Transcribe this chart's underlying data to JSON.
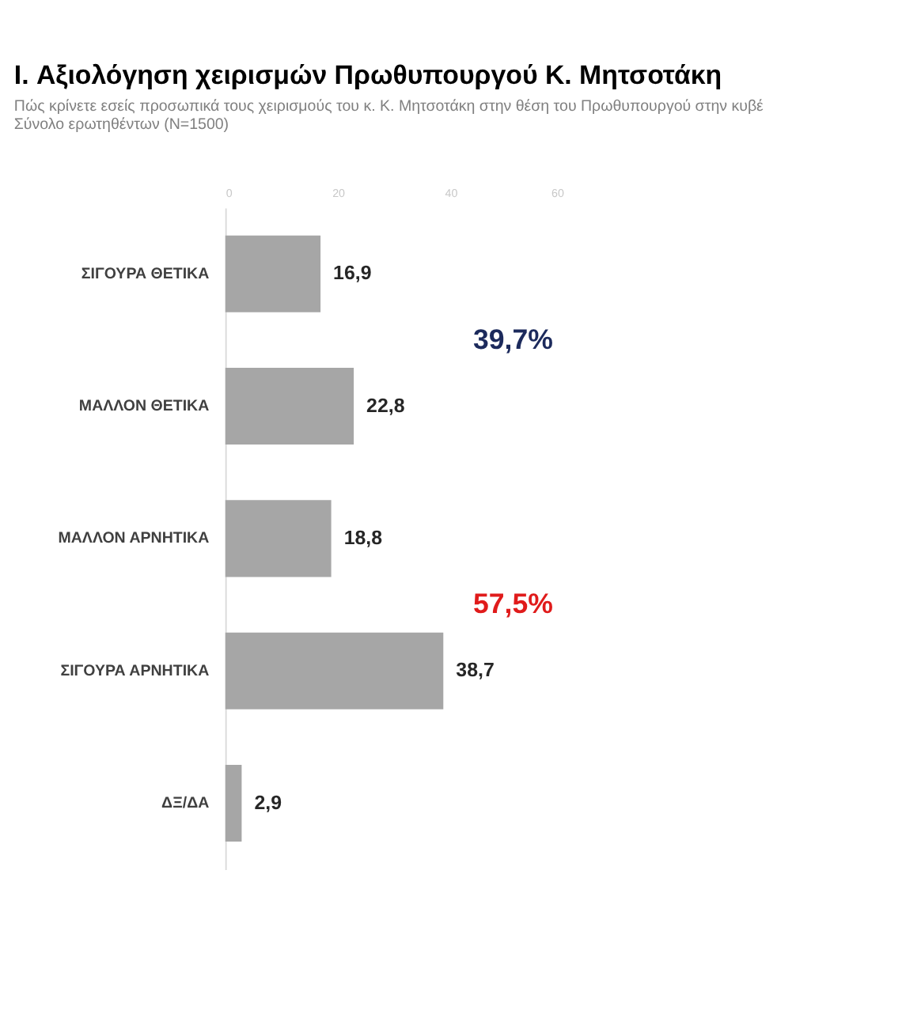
{
  "chart_data": {
    "type": "bar",
    "orientation": "horizontal",
    "title": "I. Αξιολόγηση χειρισμών Πρωθυπουργού Κ. Μητσοτάκη",
    "subtitle": "Πώς κρίνετε εσείς προσωπικά τους χειρισμούς του κ. Κ. Μητσοτάκη στην θέση του Πρωθυπουργού στην κυβέ\nΣύνολο ερωτηθέντων (N=1500)",
    "categories": [
      "ΣΙΓΟΥΡΑ ΘΕΤΙΚΑ",
      "ΜΑΛΛΟΝ ΘΕΤΙΚΑ",
      "ΜΑΛΛΟΝ ΑΡΝΗΤΙΚΑ",
      "ΣΙΓΟΥΡΑ ΑΡΝΗΤΙΚΑ",
      "ΔΞ/ΔΑ"
    ],
    "values": [
      16.9,
      22.8,
      18.8,
      38.7,
      2.9
    ],
    "value_labels": [
      "16,9",
      "22,8",
      "18,8",
      "38,7",
      "2,9"
    ],
    "color": "#a6a6a6",
    "xlim": [
      0,
      60
    ],
    "xticks": [
      0,
      20,
      40,
      60
    ],
    "grid": false,
    "annotations": [
      "39,7%",
      "57,5%"
    ]
  }
}
